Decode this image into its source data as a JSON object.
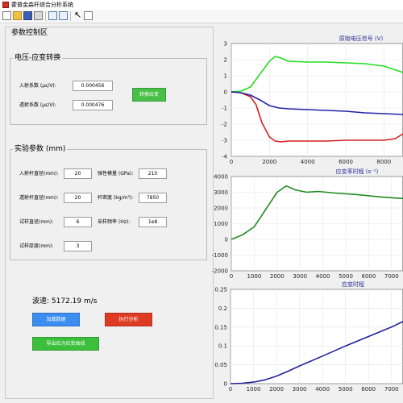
{
  "window": {
    "title": "霍普金森杆综合分析系统"
  },
  "toolbar": {
    "icons": [
      "new-file-icon",
      "open-folder-icon",
      "save-icon",
      "print-icon",
      "data-cursor-icon",
      "layout-icon",
      "pointer-icon",
      "inspector-icon"
    ]
  },
  "panel": {
    "title": "参数控制区"
  },
  "voltage_group": {
    "title": "电压-应变转换",
    "incident_label": "入射系数 (με/V):",
    "incident_value": "0.000456",
    "transmit_label": "透射系数 (με/V):",
    "transmit_value": "0.000476",
    "convert_label": "转换应变"
  },
  "experiment_group": {
    "title": "实验参数 (mm)",
    "bar_diameter_label": "入射杆直径(mm):",
    "bar_diameter_value": "20",
    "elastic_label": "弹性模量 (GPa):",
    "elastic_value": "210",
    "transmit_diameter_label": "透射杆直径(mm):",
    "transmit_diameter_value": "20",
    "density_label": "杆密度 (kg/m³):",
    "density_value": "7850",
    "sample_diameter_label": "试样直径(mm):",
    "sample_diameter_value": "6",
    "sampling_label": "采样频率 (Hz):",
    "sampling_value": "1e8",
    "sample_thickness_label": "试样厚度(mm):",
    "sample_thickness_value": "3"
  },
  "wave_speed": {
    "label": "波速:",
    "value": "5172.19 m/s"
  },
  "buttons": {
    "load": "加载数据",
    "run": "执行分析",
    "export": "导出应力应变曲线"
  },
  "colors": {
    "load": "#3b8df0",
    "run": "#de3b23",
    "export": "#3cc03c",
    "convert": "#48c048"
  },
  "charts": {
    "signal": {
      "title": "原始电压信号 (V)"
    },
    "strain_rate": {
      "title": "应变率时程 (s⁻¹)"
    },
    "strain": {
      "title": "应变时程"
    }
  },
  "chart_data": [
    {
      "type": "line",
      "title": "原始电压信号 (V)",
      "xlim": [
        0,
        9000
      ],
      "ylim": [
        -4,
        3
      ],
      "xticks": [
        0,
        2000,
        4000,
        6000,
        8000
      ],
      "yticks": [
        -4,
        -3,
        -2,
        -1,
        0,
        1,
        2,
        3
      ],
      "grid": true,
      "series": [
        {
          "color": "#22dd22",
          "x": [
            0,
            500,
            1000,
            1500,
            2000,
            2300,
            2600,
            3000,
            4000,
            5000,
            6000,
            7000,
            8000,
            8500,
            9000
          ],
          "y": [
            0,
            0.05,
            0.3,
            1.1,
            1.9,
            2.2,
            2.1,
            1.9,
            1.85,
            1.85,
            1.8,
            1.75,
            1.6,
            1.4,
            1.2
          ]
        },
        {
          "color": "#d42020",
          "x": [
            0,
            500,
            1000,
            1300,
            1600,
            2000,
            2300,
            2600,
            3000,
            4000,
            5000,
            6000,
            7000,
            8000,
            8600,
            9000
          ],
          "y": [
            0,
            -0.05,
            -0.3,
            -0.8,
            -1.9,
            -2.8,
            -3.05,
            -3.1,
            -3.05,
            -3.05,
            -3.05,
            -3.0,
            -3.0,
            -3.0,
            -2.9,
            -2.6
          ]
        },
        {
          "color": "#2222aa",
          "x": [
            0,
            500,
            1000,
            1500,
            2000,
            2500,
            3000,
            4000,
            5000,
            6000,
            7000,
            8000,
            9000
          ],
          "y": [
            0,
            -0.05,
            -0.2,
            -0.5,
            -0.85,
            -1.0,
            -1.05,
            -1.1,
            -1.15,
            -1.2,
            -1.3,
            -1.35,
            -1.4
          ]
        }
      ]
    },
    {
      "type": "line",
      "title": "应变率时程 (s⁻¹)",
      "xlim": [
        0,
        7500
      ],
      "ylim": [
        -2000,
        4000
      ],
      "xticks": [
        0,
        1000,
        2000,
        3000,
        4000,
        5000,
        6000,
        7000
      ],
      "yticks": [
        -2000,
        -1000,
        0,
        1000,
        2000,
        3000,
        4000
      ],
      "grid": true,
      "series": [
        {
          "color": "#1f8c1f",
          "x": [
            0,
            500,
            1000,
            1500,
            2000,
            2400,
            2800,
            3300,
            3800,
            4500,
            5500,
            6500,
            7500
          ],
          "y": [
            0,
            300,
            800,
            1900,
            3000,
            3400,
            3150,
            3000,
            3050,
            2950,
            2850,
            2700,
            2600
          ]
        }
      ]
    },
    {
      "type": "line",
      "title": "应变时程",
      "xlim": [
        0,
        7500
      ],
      "ylim": [
        0,
        0.25
      ],
      "xticks": [
        0,
        1000,
        2000,
        3000,
        4000,
        5000,
        6000,
        7000
      ],
      "yticks": [
        0,
        0.05,
        0.1,
        0.15,
        0.2,
        0.25
      ],
      "grid": true,
      "series": [
        {
          "color": "#22229a",
          "x": [
            0,
            500,
            1000,
            1500,
            2000,
            2500,
            3000,
            4000,
            5000,
            6000,
            7000,
            7500
          ],
          "y": [
            0,
            0.001,
            0.004,
            0.01,
            0.02,
            0.033,
            0.047,
            0.073,
            0.1,
            0.125,
            0.15,
            0.165
          ]
        }
      ]
    }
  ]
}
